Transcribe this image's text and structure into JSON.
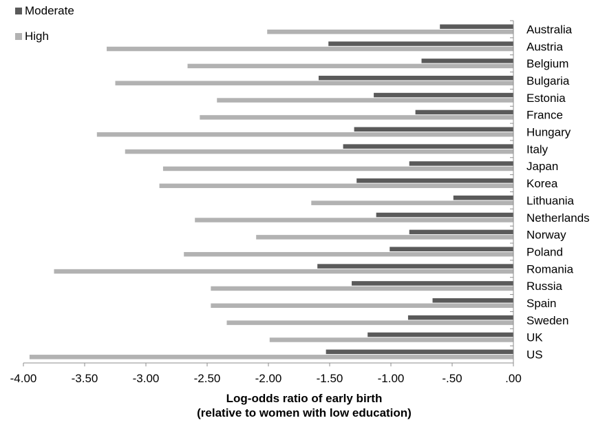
{
  "colors": {
    "moderate": "#5a5a5a",
    "high": "#b2b2b2",
    "axis": "#8c8c8c"
  },
  "chart_data": {
    "type": "bar",
    "orientation": "horizontal",
    "categories": [
      "Australia",
      "Austria",
      "Belgium",
      "Bulgaria",
      "Estonia",
      "France",
      "Hungary",
      "Italy",
      "Japan",
      "Korea",
      "Lithuania",
      "Netherlands",
      "Norway",
      "Poland",
      "Romania",
      "Russia",
      "Spain",
      "Sweden",
      "UK",
      "US"
    ],
    "series": [
      {
        "name": "Moderate",
        "values": [
          -0.6,
          -1.51,
          -0.75,
          -1.59,
          -1.14,
          -0.8,
          -1.3,
          -1.39,
          -0.85,
          -1.28,
          -0.49,
          -1.12,
          -0.85,
          -1.01,
          -1.6,
          -1.32,
          -0.66,
          -0.86,
          -1.19,
          -1.53
        ]
      },
      {
        "name": "High",
        "values": [
          -2.01,
          -3.32,
          -2.66,
          -3.25,
          -2.42,
          -2.56,
          -3.4,
          -3.17,
          -2.86,
          -2.89,
          -1.65,
          -2.6,
          -2.1,
          -2.69,
          -3.75,
          -2.47,
          -2.47,
          -2.34,
          -1.99,
          -3.95
        ]
      }
    ],
    "xlim": [
      -4.0,
      0.0
    ],
    "xticks": [
      -4.0,
      -3.5,
      -3.0,
      -2.5,
      -2.0,
      -1.5,
      -1.0,
      -0.5,
      0.0
    ],
    "xtick_labels": [
      "-4.00",
      "-3.50",
      "-3.00",
      "-2.50",
      "-2.00",
      "-1.50",
      "-1.00",
      "-.50",
      ".00"
    ],
    "xlabel": [
      "Log-odds ratio of early birth",
      "(relative to women with low education)"
    ],
    "legend_position": "top-left",
    "grid": false
  }
}
